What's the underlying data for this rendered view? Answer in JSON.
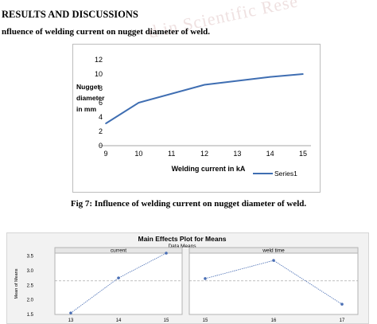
{
  "page": {
    "heading": "RESULTS AND DISCUSSIONS",
    "subheading": "nfluence of welding current on nugget diameter of weld.",
    "watermark": "d in Scientific Rese",
    "caption": "Fig 7: Influence of welding current on nugget diameter of weld."
  },
  "colors": {
    "series": "#3f6eb2",
    "axis": "#a6a6a6",
    "chart2_line": "#4a6fb5",
    "chart2_bg": "#f2f2f2"
  },
  "chart_data": [
    {
      "type": "line",
      "title": "",
      "xlabel": "Welding current in kA",
      "ylabel_lines": [
        "Nugget",
        "diameter",
        "in mm"
      ],
      "x": [
        9,
        10,
        11,
        12,
        13,
        14,
        15
      ],
      "x_ticks": [
        "9",
        "10",
        "11",
        "12",
        "13",
        "14",
        "15"
      ],
      "y_ticks": [
        "0",
        "2",
        "4",
        "6",
        "8",
        "10",
        "12"
      ],
      "ylim": [
        0,
        12
      ],
      "series": [
        {
          "name": "Series1",
          "x": [
            9,
            10,
            12,
            14,
            15
          ],
          "values": [
            3.1,
            6,
            8.5,
            9.6,
            10
          ]
        }
      ],
      "legend": "bottom-right",
      "grid": false
    },
    {
      "type": "line",
      "title": "Main Effects Plot for Means",
      "subtitle": "Data Means",
      "ylabel": "Mean of Means",
      "y_ticks": [
        "3.5",
        "3.0",
        "2.5",
        "2.0",
        "1.5"
      ],
      "ylim": [
        1.5,
        3.6
      ],
      "reference_line": 2.65,
      "panels": [
        {
          "label": "current",
          "categories": [
            "13",
            "14",
            "15"
          ],
          "values": [
            1.55,
            2.75,
            3.6
          ]
        },
        {
          "label": "weld time",
          "categories": [
            "15",
            "16",
            "17"
          ],
          "values": [
            2.73,
            3.35,
            1.85
          ]
        }
      ]
    }
  ]
}
